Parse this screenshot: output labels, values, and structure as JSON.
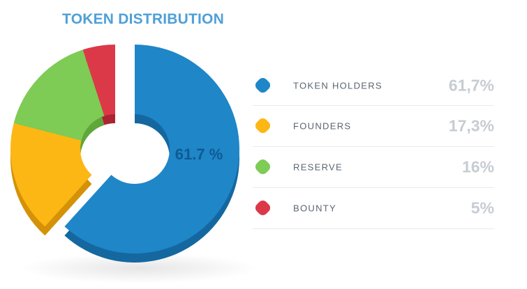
{
  "chart_data": {
    "type": "pie",
    "title": "TOKEN DISTRIBUTION",
    "center_label": "61.7 %",
    "slices": [
      {
        "label": "TOKEN HOLDERS",
        "value": 61.7,
        "display": "61,7%",
        "color": "#1f86c8",
        "side_color": "#14689f"
      },
      {
        "label": "FOUNDERS",
        "value": 17.3,
        "display": "17,3%",
        "color": "#fdb714",
        "side_color": "#d39208"
      },
      {
        "label": "RESERVE",
        "value": 16,
        "display": "16%",
        "color": "#7ecb55",
        "side_color": "#5fa63b"
      },
      {
        "label": "BOUNTY",
        "value": 5,
        "display": "5%",
        "color": "#dc3948",
        "side_color": "#ac2332"
      }
    ],
    "legend_position": "right"
  }
}
